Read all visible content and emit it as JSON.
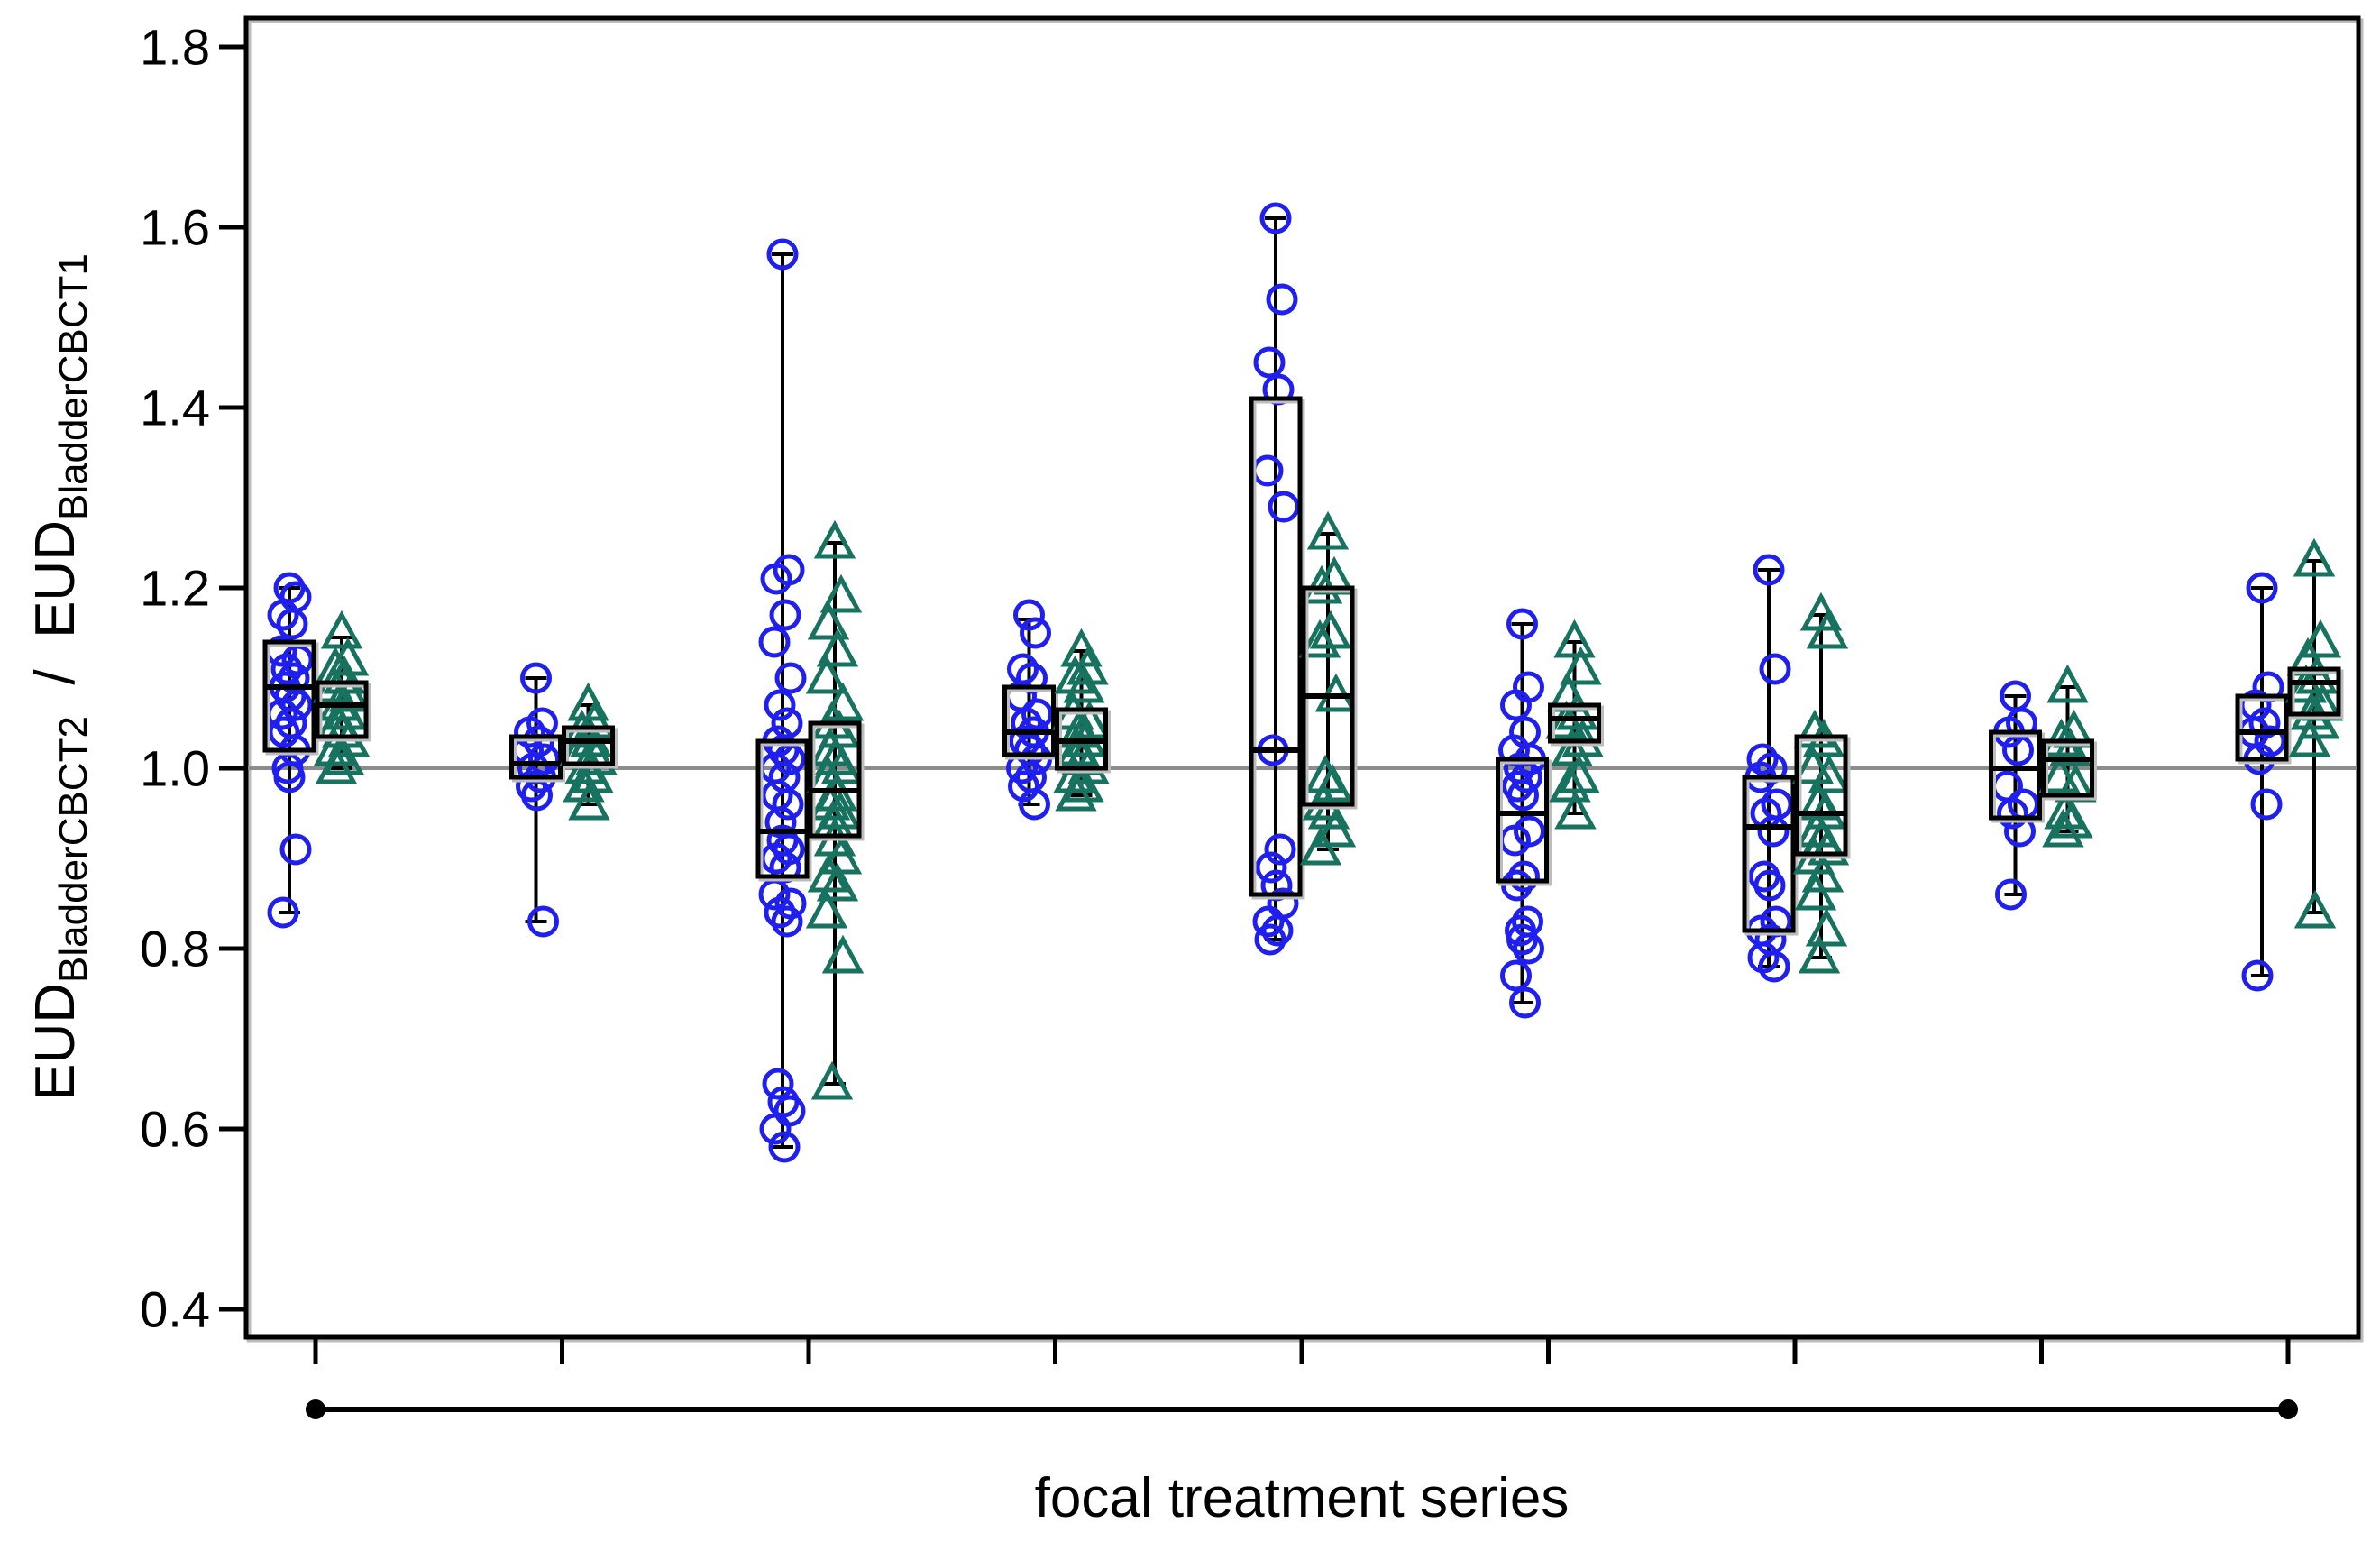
{
  "chart_data": {
    "type": "box-scatter",
    "title": "",
    "xlabel": "focal treatment series",
    "ylabel": {
      "parts": [
        {
          "text": "EUD",
          "sub": false
        },
        {
          "text": "BladderCBCT2",
          "sub": true
        },
        {
          "text": "  /  EUD",
          "sub": false
        },
        {
          "text": "BladderCBCT1",
          "sub": true
        }
      ],
      "plain": "EUD_BladderCBCT2 / EUD_BladderCBCT1"
    },
    "ylim": [
      0.37,
      1.83
    ],
    "yticks": [
      0.4,
      0.6,
      0.8,
      1.0,
      1.2,
      1.4,
      1.6,
      1.8
    ],
    "ytick_labels": [
      "0.4",
      "0.6",
      "0.8",
      "1.0",
      "1.2",
      "1.4",
      "1.6",
      "1.8"
    ],
    "xticks_count": 9,
    "grid": false,
    "legend": "none",
    "reference_line": 1.0,
    "colors": {
      "circles": "#1f1ff0",
      "triangles": "#17735f",
      "reference": "#8c8c8c",
      "box": "#000000"
    },
    "annotation": {
      "type": "range-bracket",
      "label": "focal treatment series",
      "spans_groups": [
        1,
        9
      ]
    },
    "groups": [
      {
        "index": 1,
        "circles": [
          1.2,
          1.19,
          1.17,
          1.16,
          1.13,
          1.12,
          1.11,
          1.1,
          1.09,
          1.08,
          1.07,
          1.06,
          1.05,
          1.04,
          1.02,
          1.0,
          0.99,
          0.91,
          0.84
        ],
        "circle_box": {
          "lo": 0.84,
          "q1": 1.02,
          "med": 1.09,
          "q3": 1.14,
          "hi": 1.2
        },
        "triangles": [
          1.15,
          1.12,
          1.11,
          1.1,
          1.09,
          1.08,
          1.07,
          1.06,
          1.05,
          1.04,
          1.03,
          1.02,
          1.01,
          1.0
        ],
        "triangle_box": {
          "lo": 1.0,
          "q1": 1.035,
          "med": 1.07,
          "q3": 1.095,
          "hi": 1.145
        }
      },
      {
        "index": 2,
        "circles": [
          1.1,
          1.05,
          1.04,
          1.03,
          1.02,
          1.01,
          1.0,
          0.99,
          0.98,
          0.97,
          0.83
        ],
        "circle_box": {
          "lo": 0.83,
          "q1": 0.99,
          "med": 1.005,
          "q3": 1.035,
          "hi": 1.1
        },
        "triangles": [
          1.07,
          1.05,
          1.04,
          1.03,
          1.02,
          1.01,
          1.0,
          0.99,
          0.98,
          0.96
        ],
        "triangle_box": {
          "lo": 0.96,
          "q1": 1.005,
          "med": 1.03,
          "q3": 1.045,
          "hi": 1.07
        }
      },
      {
        "index": 3,
        "circles": [
          1.57,
          1.22,
          1.21,
          1.17,
          1.14,
          1.1,
          1.07,
          1.05,
          1.03,
          1.02,
          1.01,
          1.0,
          0.99,
          0.97,
          0.96,
          0.94,
          0.92,
          0.91,
          0.9,
          0.89,
          0.86,
          0.85,
          0.84,
          0.83,
          0.65,
          0.63,
          0.62,
          0.6,
          0.58
        ],
        "circle_box": {
          "lo": 0.58,
          "q1": 0.88,
          "med": 0.93,
          "q3": 1.03,
          "hi": 1.57
        },
        "triangles": [
          1.25,
          1.19,
          1.16,
          1.13,
          1.1,
          1.07,
          1.05,
          1.04,
          1.02,
          1.01,
          1.0,
          0.99,
          0.97,
          0.96,
          0.95,
          0.94,
          0.92,
          0.9,
          0.88,
          0.87,
          0.84,
          0.79,
          0.65
        ],
        "triangle_box": {
          "lo": 0.65,
          "q1": 0.925,
          "med": 0.975,
          "q3": 1.05,
          "hi": 1.25
        }
      },
      {
        "index": 4,
        "circles": [
          1.17,
          1.15,
          1.11,
          1.1,
          1.08,
          1.06,
          1.05,
          1.04,
          1.03,
          1.02,
          1.01,
          1.0,
          0.99,
          0.98,
          0.96
        ],
        "circle_box": {
          "lo": 0.96,
          "q1": 1.015,
          "med": 1.04,
          "q3": 1.09,
          "hi": 1.165
        },
        "triangles": [
          1.13,
          1.11,
          1.1,
          1.09,
          1.06,
          1.05,
          1.04,
          1.03,
          1.02,
          1.01,
          1.0,
          0.99,
          0.98,
          0.97
        ],
        "triangle_box": {
          "lo": 0.97,
          "q1": 1.0,
          "med": 1.03,
          "q3": 1.065,
          "hi": 1.13
        }
      },
      {
        "index": 5,
        "circles": [
          1.61,
          1.52,
          1.45,
          1.42,
          1.33,
          1.29,
          1.02,
          0.91,
          0.89,
          0.87,
          0.85,
          0.83,
          0.82,
          0.81
        ],
        "circle_box": {
          "lo": 0.81,
          "q1": 0.86,
          "med": 1.02,
          "q3": 1.41,
          "hi": 1.61
        },
        "triangles": [
          1.26,
          1.21,
          1.2,
          1.15,
          1.14,
          1.08,
          0.99,
          0.98,
          0.96,
          0.95,
          0.93,
          0.91
        ],
        "triangle_box": {
          "lo": 0.91,
          "q1": 0.96,
          "med": 1.08,
          "q3": 1.2,
          "hi": 1.26
        }
      },
      {
        "index": 6,
        "circles": [
          1.16,
          1.09,
          1.07,
          1.04,
          1.02,
          1.01,
          1.0,
          0.99,
          0.98,
          0.97,
          0.93,
          0.92,
          0.88,
          0.87,
          0.83,
          0.82,
          0.81,
          0.8,
          0.77,
          0.74
        ],
        "circle_box": {
          "lo": 0.74,
          "q1": 0.875,
          "med": 0.95,
          "q3": 1.01,
          "hi": 1.16
        },
        "triangles": [
          1.14,
          1.11,
          1.08,
          1.06,
          1.05,
          1.03,
          1.02,
          0.99,
          0.98,
          0.95
        ],
        "triangle_box": {
          "lo": 0.95,
          "q1": 1.03,
          "med": 1.055,
          "q3": 1.07,
          "hi": 1.14
        }
      },
      {
        "index": 7,
        "circles": [
          1.22,
          1.11,
          1.01,
          1.0,
          0.99,
          0.96,
          0.95,
          0.93,
          0.88,
          0.87,
          0.83,
          0.82,
          0.81,
          0.79,
          0.78
        ],
        "circle_box": {
          "lo": 0.78,
          "q1": 0.82,
          "med": 0.935,
          "q3": 0.99,
          "hi": 1.22
        },
        "triangles": [
          1.17,
          1.15,
          1.04,
          1.03,
          1.0,
          0.99,
          0.96,
          0.95,
          0.93,
          0.92,
          0.91,
          0.9,
          0.88,
          0.86,
          0.82,
          0.79
        ],
        "triangle_box": {
          "lo": 0.79,
          "q1": 0.905,
          "med": 0.95,
          "q3": 1.035,
          "hi": 1.17
        }
      },
      {
        "index": 8,
        "circles": [
          1.08,
          1.05,
          1.04,
          1.02,
          0.98,
          0.96,
          0.95,
          0.93,
          0.86
        ],
        "circle_box": {
          "lo": 0.86,
          "q1": 0.945,
          "med": 1.0,
          "q3": 1.04,
          "hi": 1.08
        },
        "triangles": [
          1.09,
          1.04,
          1.03,
          1.02,
          0.99,
          0.98,
          0.95,
          0.94,
          0.93
        ],
        "triangle_box": {
          "lo": 0.93,
          "q1": 0.97,
          "med": 1.01,
          "q3": 1.03,
          "hi": 1.09
        }
      },
      {
        "index": 9,
        "circles": [
          1.2,
          1.09,
          1.07,
          1.05,
          1.04,
          1.03,
          1.01,
          0.96,
          0.77
        ],
        "circle_box": {
          "lo": 0.77,
          "q1": 1.01,
          "med": 1.04,
          "q3": 1.08,
          "hi": 1.2
        },
        "triangles": [
          1.23,
          1.14,
          1.12,
          1.1,
          1.09,
          1.07,
          1.06,
          1.05,
          1.03,
          0.84
        ],
        "triangle_box": {
          "lo": 0.84,
          "q1": 1.06,
          "med": 1.095,
          "q3": 1.11,
          "hi": 1.23
        }
      }
    ]
  }
}
